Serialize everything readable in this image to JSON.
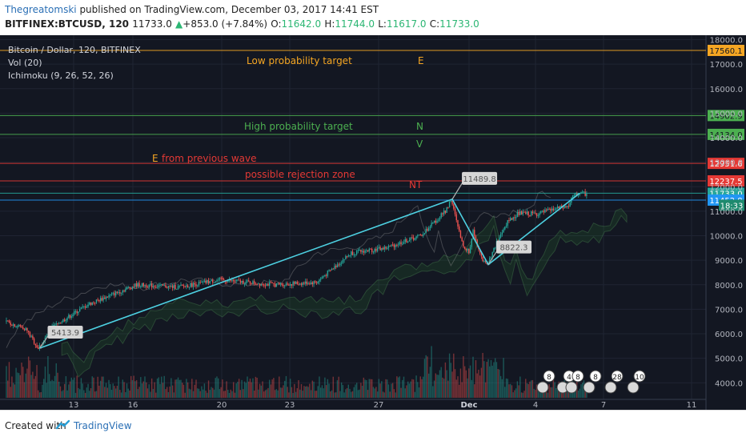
{
  "header": {
    "user": "Thegreatomski",
    "published_text": " published on TradingView.com, December 03, 2017 14:41 EST",
    "symbol": "BITFINEX:BTCUSD, 120",
    "last": "11733.0",
    "change": "+853.0 (+7.84%)",
    "o_label": "O:",
    "o": "11642.0",
    "h_label": "H:",
    "h": "11744.0",
    "l_label": "L:",
    "l": "11617.0",
    "c_label": "C:",
    "c": "11733.0"
  },
  "legend": {
    "title": "Bitcoin / Dollar, 120, BITFINEX",
    "vol": "Vol (20)",
    "ichimoku": "Ichimoku (9, 26, 52, 26)"
  },
  "footer": {
    "created_with": "Created with",
    "brand": "TradingView"
  },
  "colors": {
    "background": "#131722",
    "candle_up": "#26a69a",
    "candle_down": "#ef5350",
    "wave_line": "#4dd0e1",
    "orange": "#f5a623",
    "green": "#4caf50",
    "red": "#e53935"
  },
  "chart_data": {
    "type": "candlestick",
    "y_axis": {
      "ticks": [
        "18000.0",
        "17000.0",
        "16000.0",
        "15000.0",
        "14000.0",
        "13000.0",
        "12000.0",
        "11000.0",
        "10000.0",
        "9000.0",
        "8000.0",
        "7000.0",
        "6000.0",
        "5000.0",
        "4000.0"
      ],
      "tick_values": [
        18000,
        17000,
        16000,
        15000,
        14000,
        13000,
        12000,
        11000,
        10000,
        9000,
        8000,
        7000,
        6000,
        5000,
        4000
      ],
      "range": [
        3600,
        18400
      ]
    },
    "x_axis": {
      "ticks": [
        "13",
        "16",
        "20",
        "23",
        "27",
        "Dec",
        "4",
        "7",
        "11"
      ]
    },
    "horizontal_levels": [
      {
        "value": 17560.1,
        "label": "17560.1",
        "color": "#f5a623",
        "text_color": "#131722"
      },
      {
        "value": 14902.9,
        "label": "14902.9",
        "color": "#4caf50",
        "text_color": "#131722"
      },
      {
        "value": 14134.0,
        "label": "14134.0",
        "color": "#4caf50",
        "text_color": "#131722"
      },
      {
        "value": 12951.6,
        "label": "12951.6",
        "color": "#e53935",
        "text_color": "#ffffff"
      },
      {
        "value": 12237.5,
        "label": "12237.5",
        "color": "#e53935",
        "text_color": "#ffffff"
      },
      {
        "value": 11733.0,
        "label": "11733.0",
        "color": "#26a69a",
        "text_color": "#ffffff"
      },
      {
        "value": 11452.8,
        "label": "11452.8",
        "color": "#2196f3",
        "text_color": "#ffffff"
      }
    ],
    "countdown": "18:33",
    "annotations": [
      {
        "text": "Low probability target",
        "color": "#f5a623"
      },
      {
        "text": "E",
        "color": "#f5a623"
      },
      {
        "text": "High probability target",
        "color": "#4caf50"
      },
      {
        "text": "N",
        "color": "#4caf50"
      },
      {
        "text": "V",
        "color": "#4caf50"
      },
      {
        "text": "E",
        "color": "#f5a623"
      },
      {
        "text": "from previous wave",
        "color": "#e53935"
      },
      {
        "text": "possible rejection zone",
        "color": "#e53935"
      },
      {
        "text": "NT",
        "color": "#e53935"
      }
    ],
    "wave_points": [
      {
        "label": "5413.9",
        "value": 5413.9
      },
      {
        "label": "11489.8",
        "value": 11489.8
      },
      {
        "label": "8822.3",
        "value": 8822.3
      },
      {
        "label": "",
        "value": 11733.0
      }
    ],
    "event_badges": [
      "8",
      "4",
      "8",
      "8",
      "28",
      "10"
    ]
  }
}
